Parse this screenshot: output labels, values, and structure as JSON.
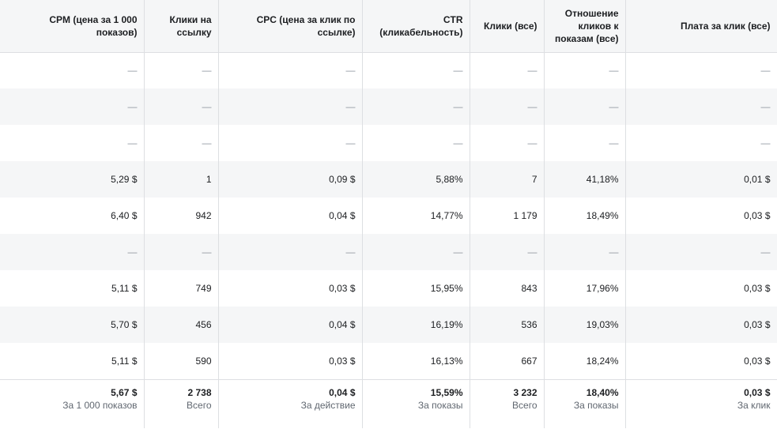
{
  "headers": [
    "CPM (цена за 1 000 показов)",
    "Клики на ссылку",
    "CPC (цена за клик по ссылке)",
    "CTR (кликабельность)",
    "Клики (все)",
    "Отношение кликов к показам (все)",
    "Плата за клик (все)"
  ],
  "rows": [
    [
      "—",
      "—",
      "—",
      "—",
      "—",
      "—",
      "—"
    ],
    [
      "—",
      "—",
      "—",
      "—",
      "—",
      "—",
      "—"
    ],
    [
      "—",
      "—",
      "—",
      "—",
      "—",
      "—",
      "—"
    ],
    [
      "5,29 $",
      "1",
      "0,09 $",
      "5,88%",
      "7",
      "41,18%",
      "0,01 $"
    ],
    [
      "6,40 $",
      "942",
      "0,04 $",
      "14,77%",
      "1 179",
      "18,49%",
      "0,03 $"
    ],
    [
      "—",
      "—",
      "—",
      "—",
      "—",
      "—",
      "—"
    ],
    [
      "5,11 $",
      "749",
      "0,03 $",
      "15,95%",
      "843",
      "17,96%",
      "0,03 $"
    ],
    [
      "5,70 $",
      "456",
      "0,04 $",
      "16,19%",
      "536",
      "19,03%",
      "0,03 $"
    ],
    [
      "5,11 $",
      "590",
      "0,03 $",
      "16,13%",
      "667",
      "18,24%",
      "0,03 $"
    ]
  ],
  "totals": [
    {
      "value": "5,67 $",
      "caption": "За 1 000 показов"
    },
    {
      "value": "2 738",
      "caption": "Всего"
    },
    {
      "value": "0,04 $",
      "caption": "За действие"
    },
    {
      "value": "15,59%",
      "caption": "За показы"
    },
    {
      "value": "3 232",
      "caption": "Всего"
    },
    {
      "value": "18,40%",
      "caption": "За показы"
    },
    {
      "value": "0,03 $",
      "caption": "За клик"
    }
  ],
  "colors": {
    "header_bg": "#f5f6f7",
    "stripe_bg": "#f5f6f7",
    "border": "#dddfe2",
    "dash": "#8d949e",
    "caption": "#606770"
  }
}
